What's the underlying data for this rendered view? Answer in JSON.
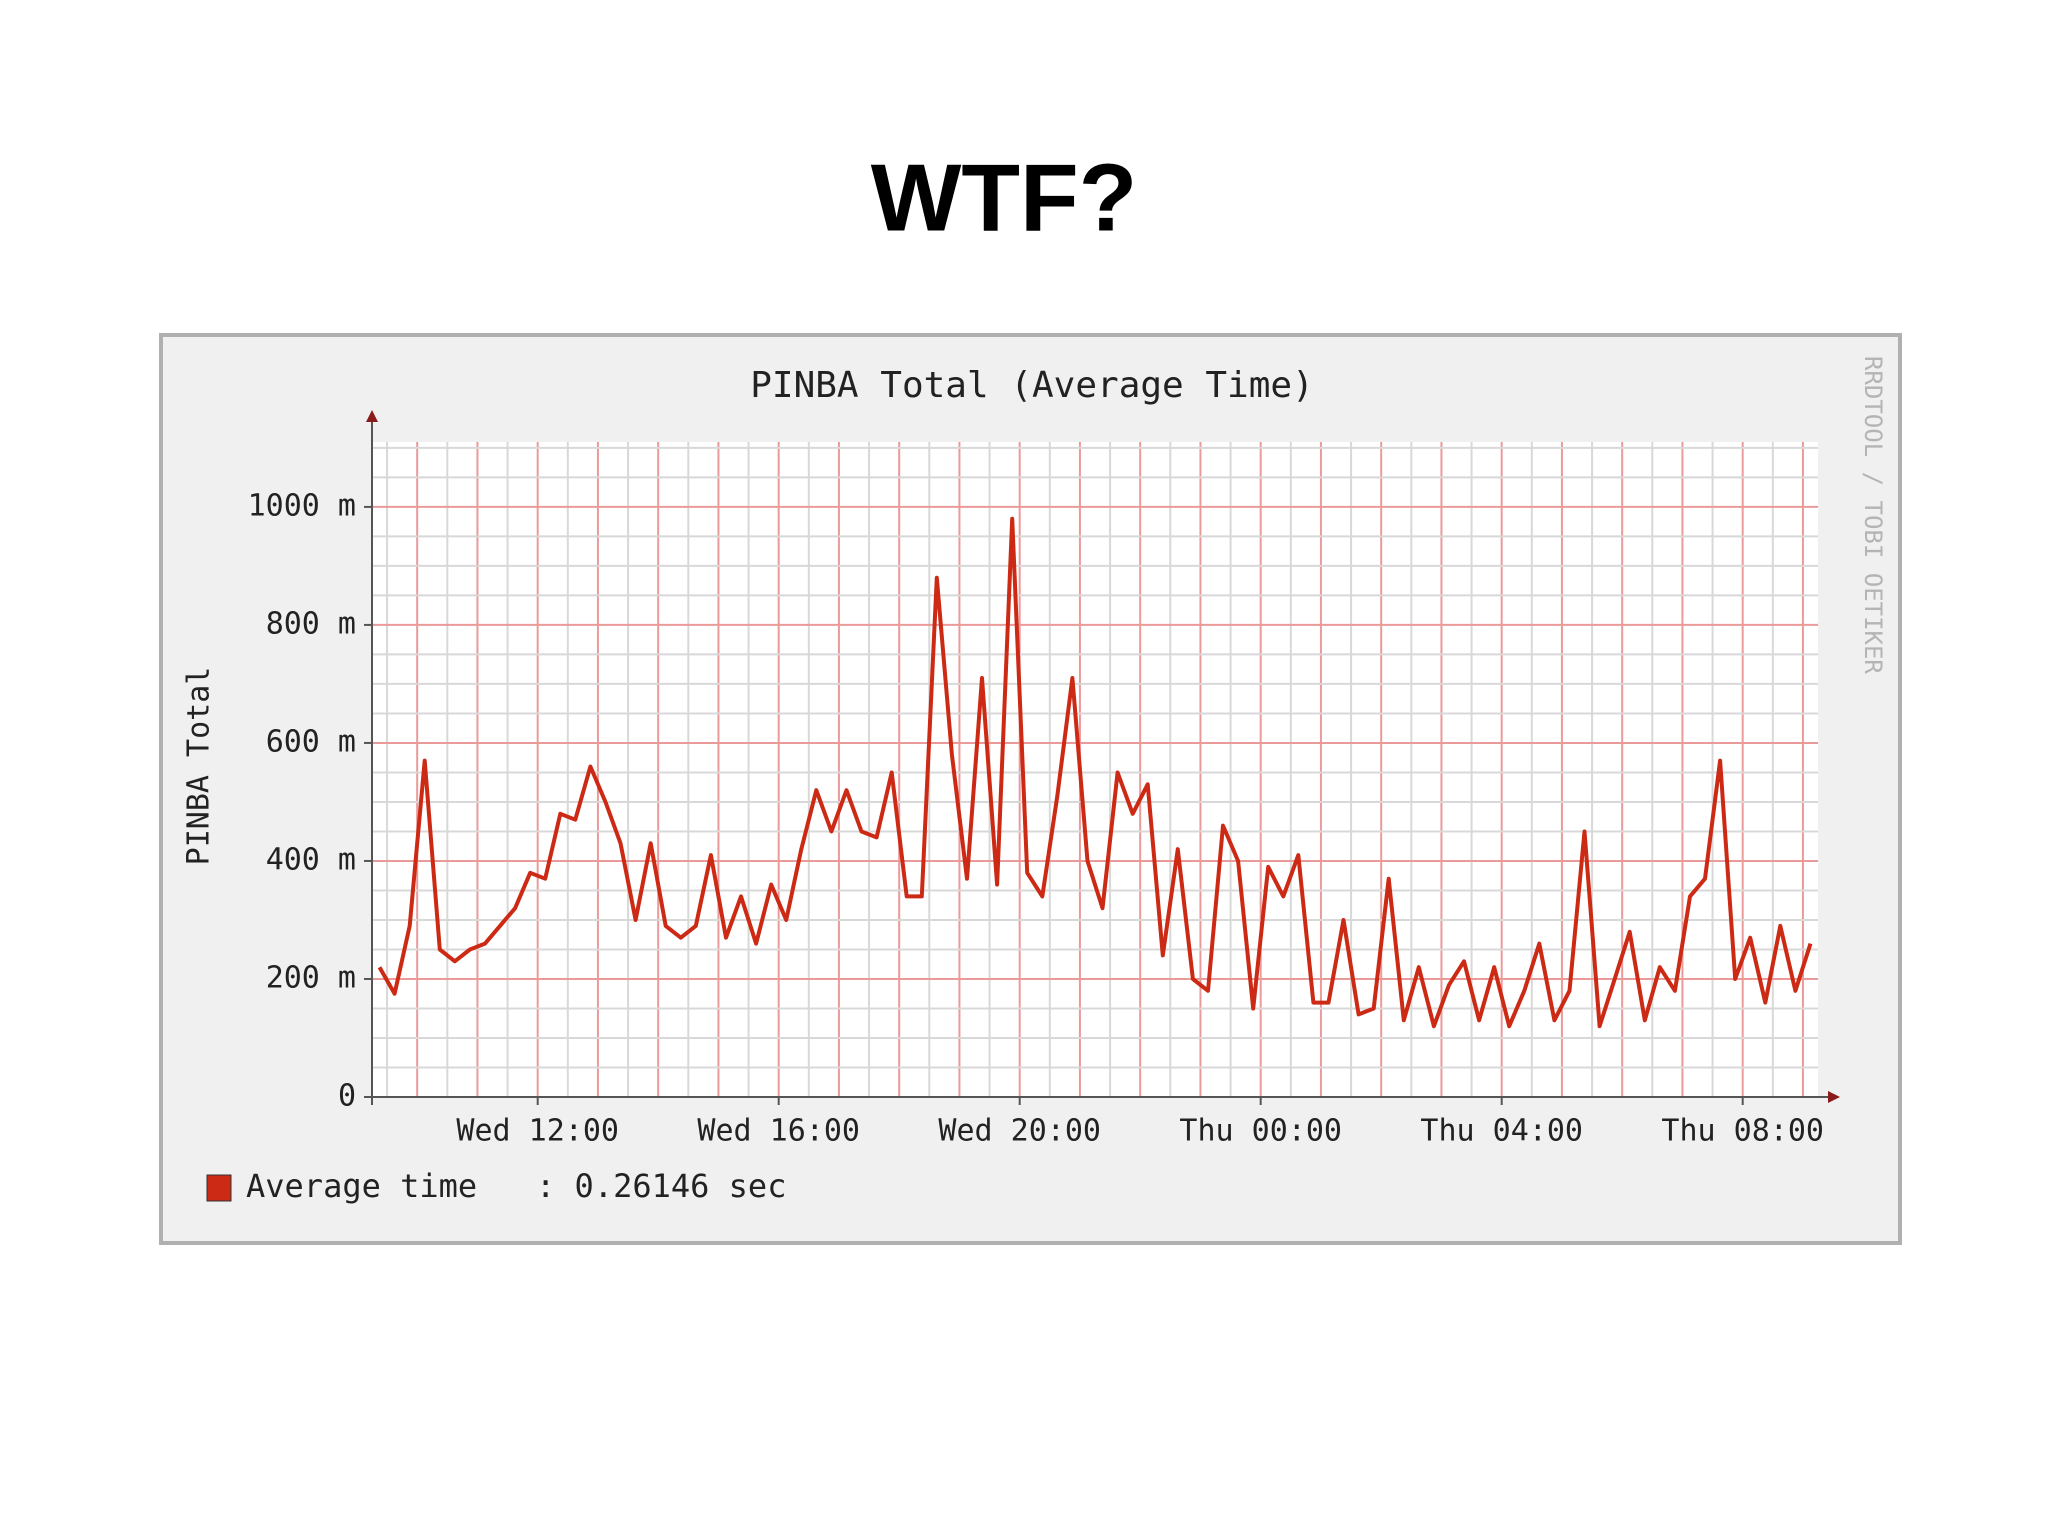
{
  "slide_title": "WTF?",
  "chart_data": {
    "type": "line",
    "title": "PINBA Total (Average Time)",
    "y_label": "PINBA Total",
    "watermark": "RRDTOOL / TOBI OETIKER",
    "categories": [
      null,
      null,
      null,
      null,
      null,
      null,
      null,
      null,
      null,
      null,
      null,
      "Wed 12:00",
      null,
      null,
      null,
      null,
      null,
      null,
      null,
      null,
      null,
      null,
      null,
      null,
      null,
      null,
      null,
      "Wed 16:00",
      null,
      null,
      null,
      null,
      null,
      null,
      null,
      null,
      null,
      null,
      null,
      null,
      null,
      null,
      null,
      "Wed 20:00",
      null,
      null,
      null,
      null,
      null,
      null,
      null,
      null,
      null,
      null,
      null,
      null,
      null,
      null,
      null,
      "Thu 00:00",
      null,
      null,
      null,
      null,
      null,
      null,
      null,
      null,
      null,
      null,
      null,
      null,
      null,
      null,
      null,
      "Thu 04:00",
      null,
      null,
      null,
      null,
      null,
      null,
      null,
      null,
      null,
      null,
      null,
      null,
      null,
      null,
      null,
      "Thu 08:00",
      null,
      null,
      null,
      null
    ],
    "series": [
      {
        "name": "Average time",
        "legend_text": ": 0.26146 sec",
        "color": "#cc2a14",
        "values": [
          220,
          175,
          290,
          570,
          250,
          230,
          250,
          260,
          290,
          320,
          380,
          370,
          480,
          470,
          560,
          500,
          430,
          300,
          430,
          290,
          270,
          290,
          410,
          270,
          340,
          260,
          360,
          300,
          420,
          520,
          450,
          520,
          450,
          440,
          550,
          340,
          340,
          880,
          580,
          370,
          710,
          360,
          980,
          380,
          340,
          510,
          710,
          400,
          320,
          550,
          480,
          530,
          240,
          420,
          200,
          180,
          460,
          400,
          150,
          390,
          340,
          410,
          160,
          160,
          300,
          140,
          150,
          370,
          130,
          220,
          120,
          190,
          230,
          130,
          220,
          120,
          180,
          260,
          130,
          180,
          450,
          120,
          200,
          280,
          130,
          220,
          180,
          340,
          370,
          570,
          200,
          270,
          160,
          290,
          180,
          260
        ]
      }
    ],
    "ylim": [
      0,
      1110
    ],
    "yticks": [
      0,
      {
        "value": 200,
        "label": "200 m"
      },
      {
        "value": 400,
        "label": "400 m"
      },
      {
        "value": 600,
        "label": "600 m"
      },
      {
        "value": 800,
        "label": "800 m"
      },
      {
        "value": 1000,
        "label": "1000 m"
      }
    ],
    "yminor": [
      50,
      100,
      150,
      250,
      300,
      350,
      450,
      500,
      550,
      650,
      700,
      750,
      850,
      900,
      950,
      1050,
      1100
    ],
    "grid": true
  }
}
